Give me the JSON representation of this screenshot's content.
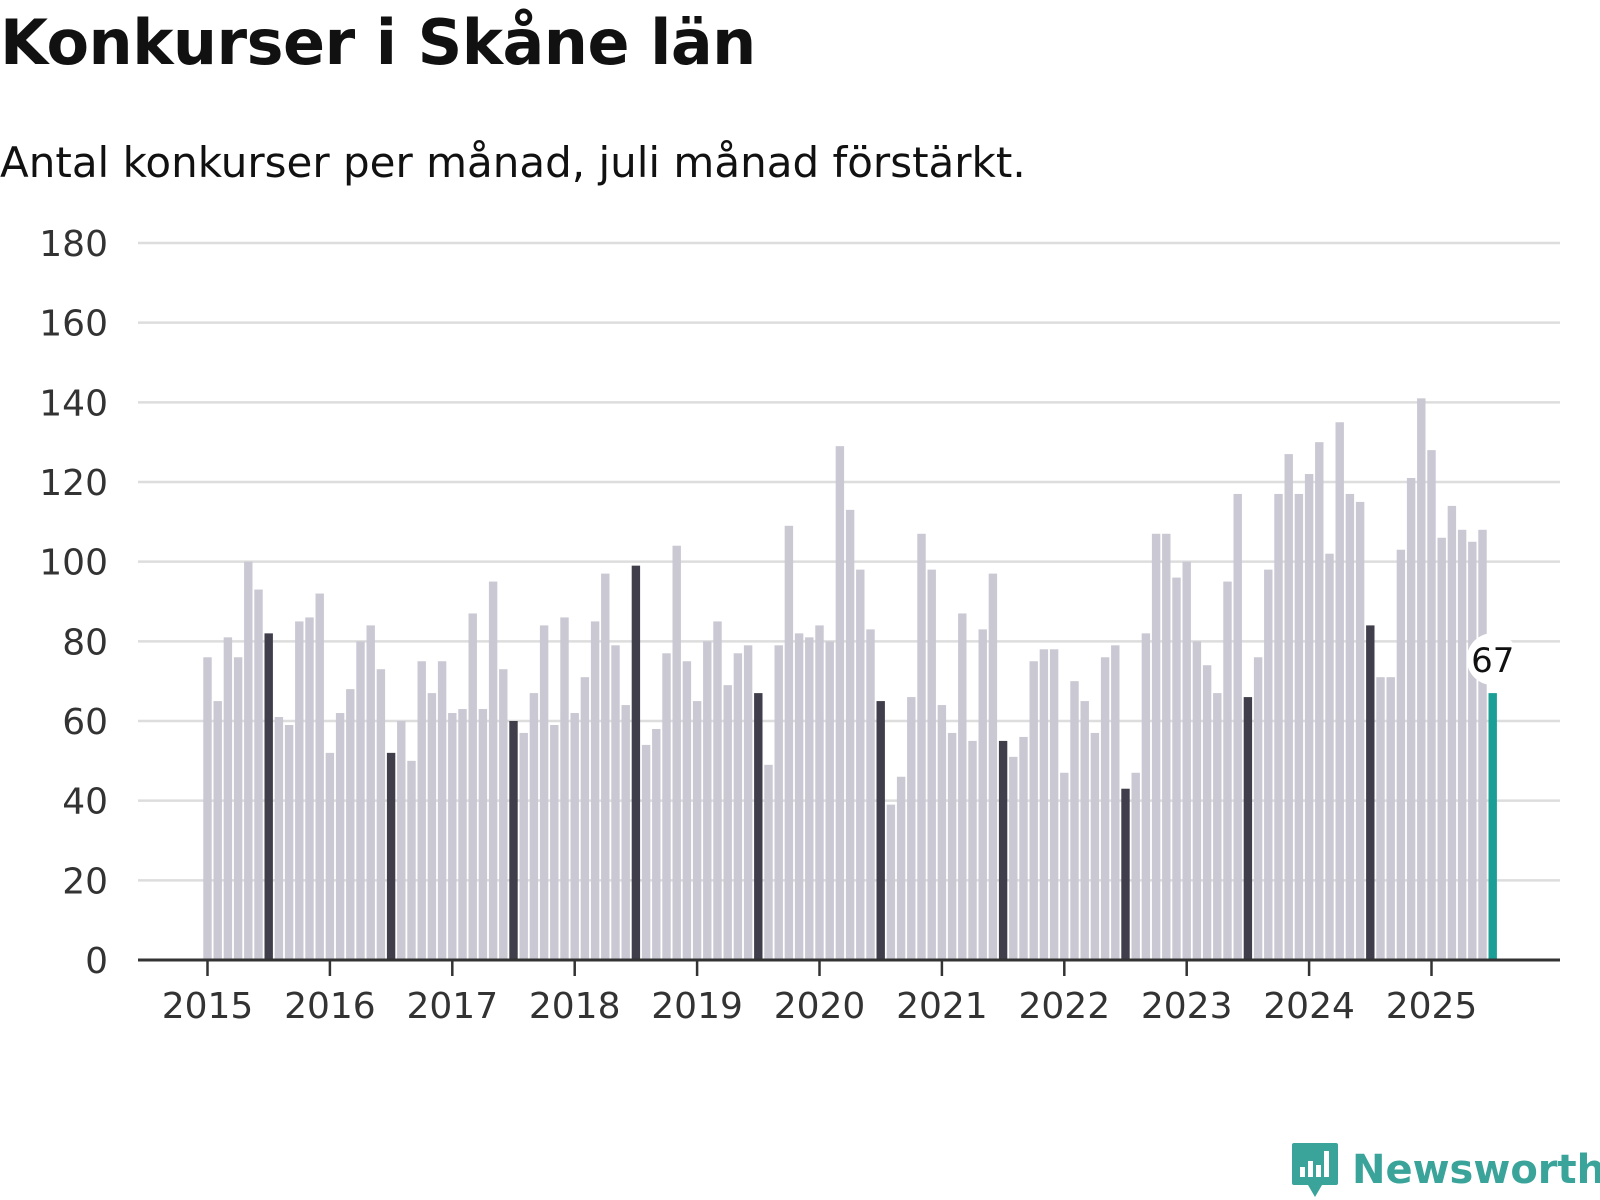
{
  "title": "Konkurser i Skåne län",
  "subtitle": "Antal konkurser per månad, juli månad förstärkt.",
  "logo": {
    "text": "Newsworthy",
    "icon": "bar-chart-speech-bubble-icon"
  },
  "colors": {
    "regular": "#c9c8d3",
    "july": "#3f3e4a",
    "latest": "#1a9e96",
    "grid": "#dddddd",
    "axis": "#333333"
  },
  "chart_data": {
    "type": "bar",
    "title": "Konkurser i Skåne län",
    "subtitle": "Antal konkurser per månad, juli månad förstärkt.",
    "xlabel": "",
    "ylabel": "",
    "ylim": [
      0,
      180
    ],
    "yticks": [
      "0",
      "20",
      "40",
      "60",
      "80",
      "100",
      "120",
      "140",
      "160",
      "180"
    ],
    "xticks": [
      "2015",
      "2016",
      "2017",
      "2018",
      "2019",
      "2020",
      "2021",
      "2022",
      "2023",
      "2024",
      "2025"
    ],
    "start_year": 2015,
    "highlight_month": 7,
    "grid": true,
    "latest_label": "67",
    "values": [
      76,
      65,
      81,
      76,
      100,
      93,
      82,
      61,
      59,
      85,
      86,
      92,
      52,
      62,
      68,
      80,
      84,
      73,
      52,
      60,
      50,
      75,
      67,
      75,
      62,
      63,
      87,
      63,
      95,
      73,
      60,
      57,
      67,
      84,
      59,
      86,
      62,
      71,
      85,
      97,
      79,
      64,
      99,
      54,
      58,
      77,
      104,
      75,
      65,
      80,
      85,
      69,
      77,
      79,
      67,
      49,
      79,
      109,
      82,
      81,
      84,
      80,
      129,
      113,
      98,
      83,
      65,
      39,
      46,
      66,
      107,
      98,
      64,
      57,
      87,
      55,
      83,
      97,
      55,
      51,
      56,
      75,
      78,
      78,
      47,
      70,
      65,
      57,
      76,
      79,
      43,
      47,
      82,
      107,
      107,
      96,
      100,
      80,
      74,
      67,
      95,
      117,
      66,
      76,
      98,
      117,
      127,
      117,
      122,
      130,
      102,
      135,
      117,
      115,
      84,
      71,
      71,
      103,
      121,
      141,
      128,
      106,
      114,
      108,
      105,
      108,
      67
    ]
  }
}
